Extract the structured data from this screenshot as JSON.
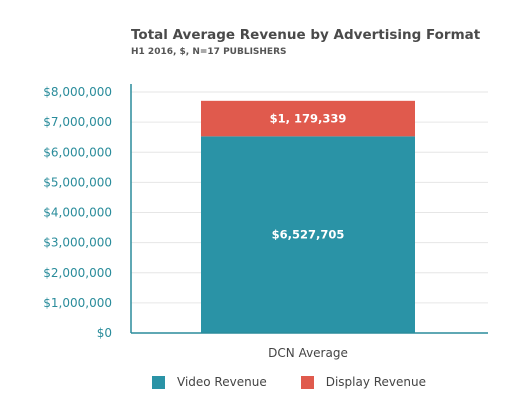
{
  "title": "Total Average Revenue by Advertising Format",
  "subtitle": "H1 2016, $, N=17 PUBLISHERS",
  "colors": {
    "video": "#2a93a6",
    "display": "#e05a4d",
    "axis_text": "#2a8c9b"
  },
  "chart_data": {
    "type": "bar",
    "stacked": true,
    "categories": [
      "DCN Average"
    ],
    "series": [
      {
        "name": "Video Revenue",
        "values": [
          6527705
        ],
        "label": "$6,527,705"
      },
      {
        "name": "Display Revenue",
        "values": [
          1179339
        ],
        "label": "$1, 179,339"
      }
    ],
    "ylim": [
      0,
      8000000
    ],
    "yticks": [
      0,
      1000000,
      2000000,
      3000000,
      4000000,
      5000000,
      6000000,
      7000000,
      8000000
    ],
    "ytick_labels": [
      "$0",
      "$1,000,000",
      "$2,000,000",
      "$3,000,000",
      "$4,000,000",
      "$5,000,000",
      "$6,000,000",
      "$7,000,000",
      "$8,000,000"
    ],
    "grid": true,
    "legend": "bottom"
  }
}
